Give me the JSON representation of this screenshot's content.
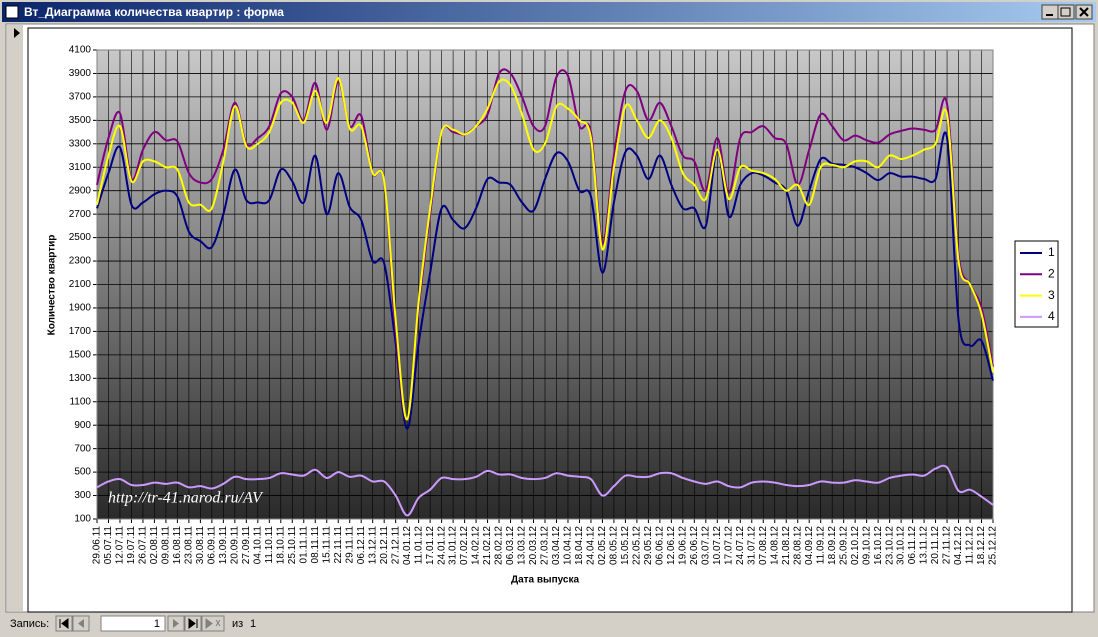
{
  "window": {
    "title": "Вт_Диаграмма количества квартир : форма"
  },
  "chart_data": {
    "type": "line",
    "ylabel": "Количество квартир",
    "xlabel": "Дата выпуска",
    "annotation": "http://tr-41.narod.ru/AV",
    "categories": [
      "29.06.11",
      "05.07.11",
      "12.07.11",
      "19.07.11",
      "26.07.11",
      "02.08.11",
      "09.08.11",
      "16.08.11",
      "23.08.11",
      "30.08.11",
      "06.09.11",
      "13.09.11",
      "20.09.11",
      "27.09.11",
      "04.10.11",
      "11.10.11",
      "18.10.11",
      "25.10.11",
      "01.11.11",
      "08.11.11",
      "15.11.11",
      "22.11.11",
      "29.11.11",
      "06.12.11",
      "13.12.11",
      "20.12.11",
      "27.12.11",
      "04.01.12",
      "11.01.12",
      "17.01.12",
      "24.01.12",
      "31.01.12",
      "07.02.12",
      "14.02.12",
      "21.02.12",
      "28.02.12",
      "06.03.12",
      "13.03.12",
      "20.03.12",
      "27.03.12",
      "03.04.12",
      "10.04.12",
      "18.04.12",
      "24.04.12",
      "02.05.12",
      "08.05.12",
      "15.05.12",
      "22.05.12",
      "29.05.12",
      "06.06.12",
      "12.06.12",
      "19.06.12",
      "26.06.12",
      "03.07.12",
      "10.07.12",
      "17.07.12",
      "24.07.12",
      "31.07.12",
      "07.08.12",
      "14.08.12",
      "21.08.12",
      "28.08.12",
      "04.09.12",
      "11.09.12",
      "18.09.12",
      "25.09.12",
      "02.10.12",
      "09.10.12",
      "16.10.12",
      "23.10.12",
      "30.10.12",
      "06.11.12",
      "13.11.12",
      "20.11.12",
      "27.11.12",
      "04.12.12",
      "11.12.12",
      "18.12.12",
      "25.12.12"
    ],
    "series": [
      {
        "name": "1",
        "color": "#000080",
        "values": [
          2750,
          3050,
          3270,
          2780,
          2800,
          2870,
          2900,
          2850,
          2550,
          2470,
          2420,
          2700,
          3080,
          2820,
          2800,
          2820,
          3080,
          2980,
          2800,
          3200,
          2700,
          3050,
          2760,
          2650,
          2300,
          2280,
          1600,
          870,
          1600,
          2200,
          2750,
          2650,
          2580,
          2750,
          3000,
          2970,
          2950,
          2800,
          2730,
          3000,
          3220,
          3150,
          2900,
          2850,
          2200,
          2800,
          3230,
          3200,
          3000,
          3200,
          2950,
          2750,
          2750,
          2600,
          3250,
          2680,
          2950,
          3050,
          3030,
          2970,
          2900,
          2600,
          2900,
          3170,
          3130,
          3120,
          3100,
          3050,
          2990,
          3050,
          3020,
          3020,
          3000,
          3000,
          3350,
          1800,
          1580,
          1620,
          1280
        ]
      },
      {
        "name": "2",
        "color": "#800080",
        "values": [
          2950,
          3350,
          3560,
          3000,
          3250,
          3400,
          3330,
          3320,
          3050,
          2970,
          3000,
          3250,
          3650,
          3300,
          3350,
          3450,
          3730,
          3700,
          3500,
          3820,
          3420,
          3830,
          3450,
          3540,
          3050,
          2980,
          1700,
          950,
          1900,
          2700,
          3400,
          3400,
          3380,
          3450,
          3550,
          3900,
          3900,
          3700,
          3450,
          3450,
          3870,
          3880,
          3450,
          3400,
          2450,
          3200,
          3750,
          3750,
          3500,
          3650,
          3450,
          3200,
          3150,
          2900,
          3350,
          2880,
          3350,
          3400,
          3450,
          3350,
          3300,
          2950,
          3250,
          3550,
          3450,
          3330,
          3370,
          3330,
          3310,
          3380,
          3410,
          3430,
          3420,
          3420,
          3640,
          2350,
          2100,
          1900,
          1400
        ]
      },
      {
        "name": "3",
        "color": "#ffff00",
        "values": [
          2780,
          3200,
          3450,
          2980,
          3150,
          3150,
          3100,
          3080,
          2800,
          2780,
          2750,
          3150,
          3620,
          3280,
          3300,
          3400,
          3650,
          3650,
          3480,
          3750,
          3480,
          3860,
          3430,
          3450,
          3050,
          2980,
          1800,
          950,
          1950,
          2750,
          3400,
          3420,
          3380,
          3450,
          3600,
          3830,
          3800,
          3550,
          3250,
          3300,
          3620,
          3600,
          3500,
          3350,
          2400,
          3100,
          3620,
          3500,
          3350,
          3500,
          3350,
          3050,
          2950,
          2830,
          3250,
          2830,
          3100,
          3070,
          3050,
          3000,
          2900,
          2950,
          2780,
          3100,
          3120,
          3100,
          3150,
          3150,
          3100,
          3200,
          3170,
          3200,
          3250,
          3300,
          3550,
          2300,
          2100,
          1850,
          1350
        ]
      },
      {
        "name": "4",
        "color": "#cc99ff",
        "values": [
          370,
          420,
          440,
          390,
          390,
          410,
          400,
          410,
          370,
          380,
          360,
          400,
          460,
          440,
          440,
          450,
          490,
          480,
          470,
          520,
          450,
          500,
          460,
          470,
          420,
          420,
          300,
          130,
          280,
          350,
          450,
          440,
          440,
          460,
          510,
          480,
          480,
          450,
          440,
          450,
          490,
          470,
          460,
          440,
          300,
          380,
          470,
          460,
          460,
          490,
          490,
          450,
          420,
          400,
          420,
          380,
          370,
          410,
          420,
          410,
          390,
          380,
          390,
          420,
          410,
          410,
          430,
          420,
          410,
          450,
          470,
          480,
          470,
          530,
          540,
          340,
          350,
          290,
          220
        ]
      }
    ],
    "ylim": [
      100,
      4100
    ],
    "yticks": [
      100,
      300,
      500,
      700,
      900,
      1100,
      1300,
      1500,
      1700,
      1900,
      2100,
      2300,
      2500,
      2700,
      2900,
      3100,
      3300,
      3500,
      3700,
      3900,
      4100
    ],
    "grid": true,
    "legend": "right"
  },
  "nav": {
    "label": "Запись:",
    "current": 1,
    "of": "из",
    "total": 1
  }
}
